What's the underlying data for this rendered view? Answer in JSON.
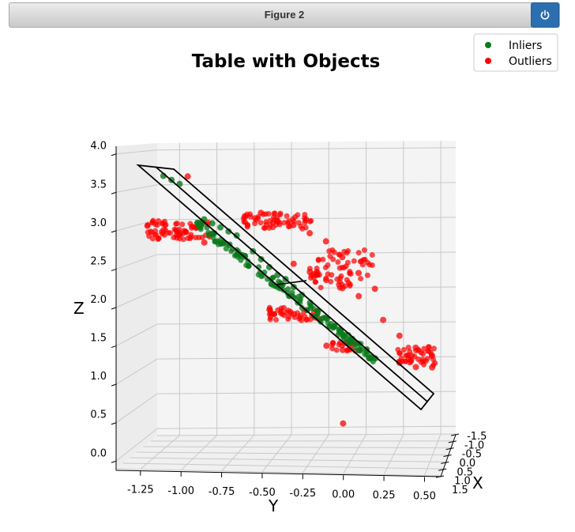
{
  "window": {
    "title": "Figure 2",
    "power_icon": "power-icon"
  },
  "colors": {
    "inliers": "#0a7a1a",
    "outliers": "#ff0000",
    "plane": "#000000",
    "pane": "#f4f4f4",
    "grid": "#c8c8c8",
    "button": "#2c6fb0"
  },
  "chart_data": {
    "type": "scatter",
    "projection": "3d",
    "title": "Table with Objects",
    "xlabel": "X",
    "ylabel": "Y",
    "zlabel": "Z",
    "x_ticks": [
      "1.5",
      "1.0",
      "0.5",
      "0.0",
      "-0.5",
      "-1.0",
      "-1.5"
    ],
    "y_ticks": [
      "-1.25",
      "-1.00",
      "-0.75",
      "-0.50",
      "-0.25",
      "0.00",
      "0.25",
      "0.50"
    ],
    "z_ticks": [
      "0.0",
      "0.5",
      "1.0",
      "1.5",
      "2.0",
      "2.5",
      "3.0",
      "3.5",
      "4.0"
    ],
    "ylim": [
      -1.4,
      0.6
    ],
    "zlim": [
      -0.1,
      4.1
    ],
    "grid": true,
    "legend": {
      "placement": "top-right",
      "entries": [
        "Inliers",
        "Outliers"
      ]
    },
    "series": [
      {
        "name": "Inliers",
        "points_yz": [
          [
            -1.1,
            3.7
          ],
          [
            -1.05,
            3.65
          ],
          [
            -1.0,
            3.6
          ],
          [
            -0.85,
            3.15
          ],
          [
            -0.8,
            3.1
          ],
          [
            -0.75,
            3.05
          ],
          [
            -0.7,
            3.0
          ],
          [
            -0.65,
            2.95
          ],
          [
            -0.55,
            2.75
          ],
          [
            -0.5,
            2.65
          ],
          [
            -0.45,
            2.55
          ],
          [
            -0.4,
            2.45
          ],
          [
            -0.35,
            2.4
          ],
          [
            -0.3,
            2.3
          ],
          [
            -0.25,
            2.2
          ],
          [
            -0.2,
            2.1
          ],
          [
            -0.15,
            2.0
          ],
          [
            -0.1,
            1.9
          ],
          [
            -0.05,
            1.8
          ],
          [
            0.0,
            1.7
          ],
          [
            0.05,
            1.6
          ],
          [
            0.1,
            1.5
          ],
          [
            0.15,
            1.45
          ],
          [
            0.2,
            1.4
          ]
        ]
      },
      {
        "name": "Outliers",
        "points_yz": [
          [
            -0.95,
            3.7
          ],
          [
            -1.2,
            3.05
          ],
          [
            -1.1,
            3.0
          ],
          [
            -1.0,
            2.95
          ],
          [
            -0.9,
            3.05
          ],
          [
            -0.85,
            2.85
          ],
          [
            -0.6,
            3.2
          ],
          [
            -0.5,
            3.25
          ],
          [
            -0.4,
            3.15
          ],
          [
            -0.3,
            3.1
          ],
          [
            -0.2,
            3.0
          ],
          [
            -0.1,
            2.9
          ],
          [
            0.0,
            2.7
          ],
          [
            0.1,
            2.5
          ],
          [
            0.2,
            2.3
          ],
          [
            -0.3,
            2.6
          ],
          [
            -0.2,
            2.5
          ],
          [
            -0.1,
            2.4
          ],
          [
            0.0,
            2.3
          ],
          [
            0.1,
            2.2
          ],
          [
            -0.45,
            2.0
          ],
          [
            -0.3,
            1.95
          ],
          [
            -0.15,
            1.9
          ],
          [
            -0.1,
            1.55
          ],
          [
            0.0,
            1.5
          ],
          [
            0.25,
            1.9
          ],
          [
            0.35,
            1.7
          ],
          [
            0.45,
            1.55
          ],
          [
            0.55,
            1.45
          ],
          [
            0.55,
            1.3
          ],
          [
            0.45,
            1.3
          ],
          [
            0.35,
            1.35
          ],
          [
            0.0,
            0.55
          ]
        ]
      }
    ]
  }
}
